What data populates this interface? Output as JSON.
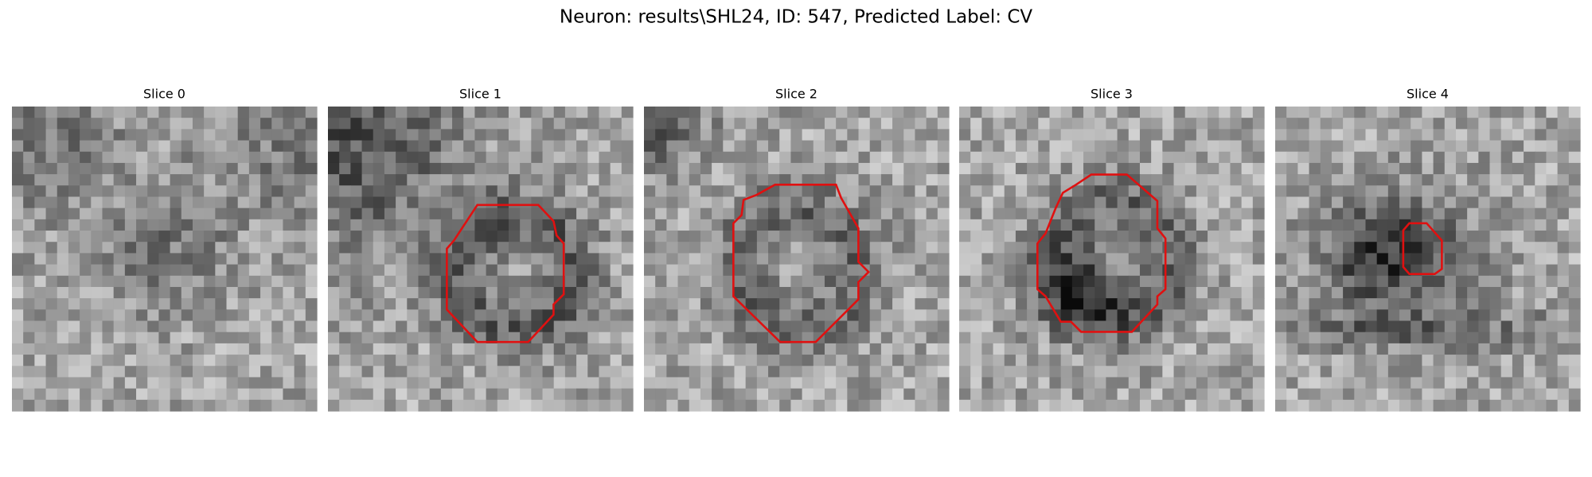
{
  "header": {
    "title": "Neuron: results\\SHL24, ID: 547, Predicted Label: CV"
  },
  "panels": [
    {
      "title": "Slice 0"
    },
    {
      "title": "Slice 1"
    },
    {
      "title": "Slice 2"
    },
    {
      "title": "Slice 3"
    },
    {
      "title": "Slice 4"
    }
  ]
}
